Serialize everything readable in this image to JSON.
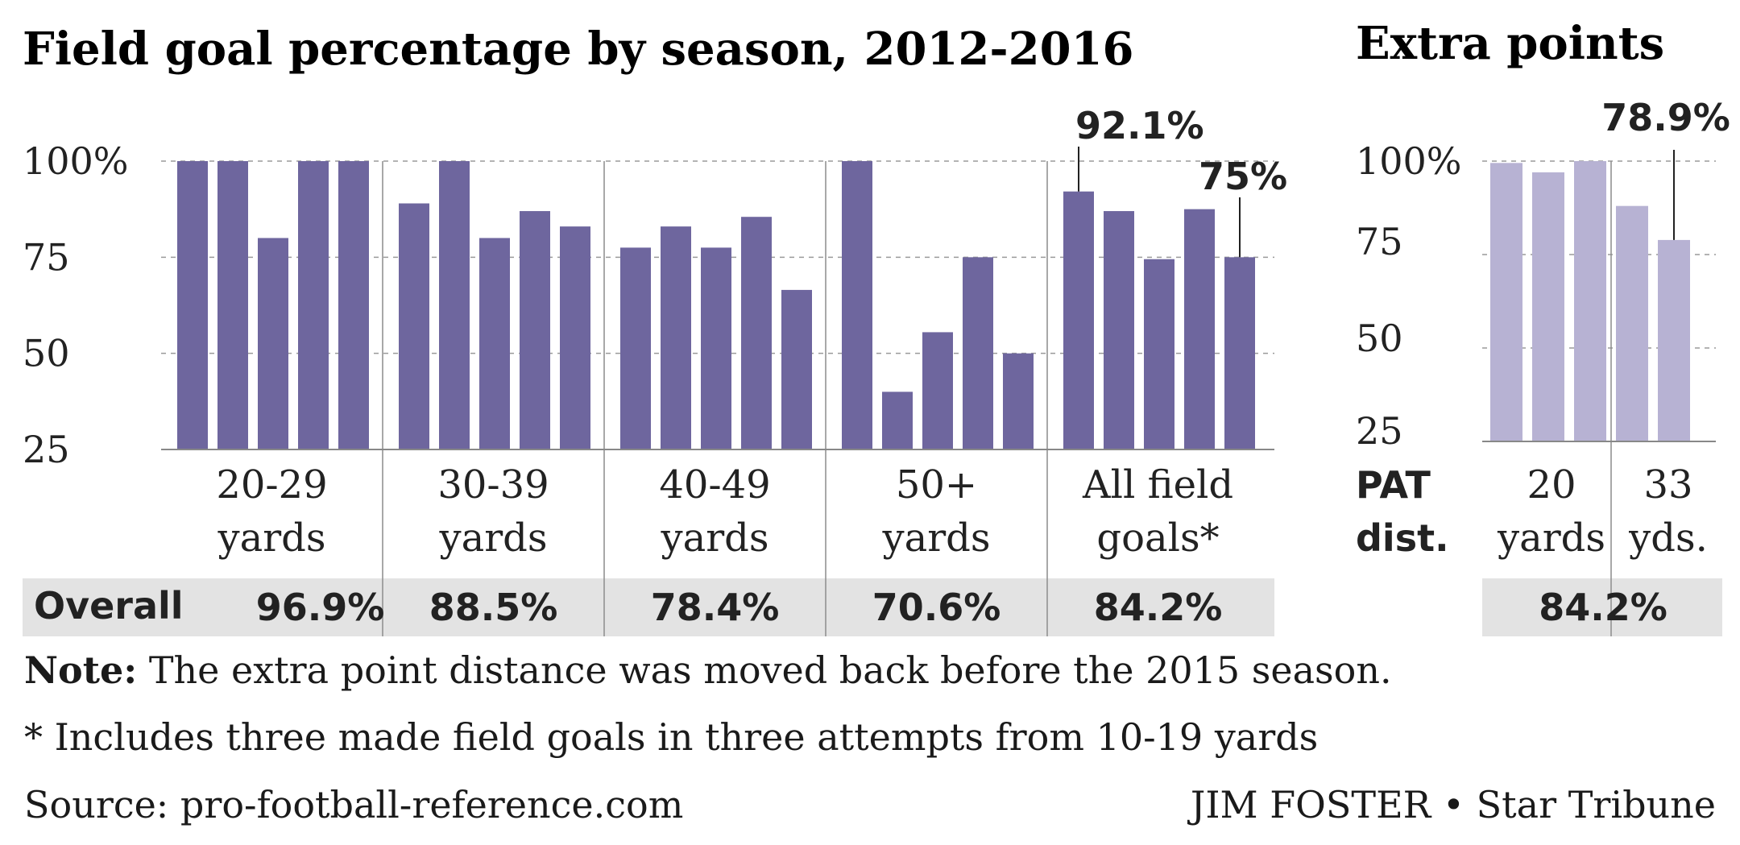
{
  "chart_data": [
    {
      "type": "bar",
      "title": "Field goal percentage by season, 2012-2016",
      "ylim": [
        25,
        100
      ],
      "yticks": [
        "100%",
        "75",
        "50",
        "25"
      ],
      "bar_color": "#6e669e",
      "groups": [
        {
          "label": [
            "20-29",
            "yards"
          ],
          "values": [
            100,
            100,
            80,
            100,
            100
          ],
          "overall": "96.9%"
        },
        {
          "label": [
            "30-39",
            "yards"
          ],
          "values": [
            89,
            100,
            80,
            87,
            83
          ],
          "overall": "88.5%"
        },
        {
          "label": [
            "40-49",
            "yards"
          ],
          "values": [
            77.5,
            83,
            77.5,
            85.5,
            66.5
          ],
          "overall": "78.4%"
        },
        {
          "label": [
            "50+",
            "yards"
          ],
          "values": [
            100,
            40,
            55.5,
            75,
            50
          ],
          "overall": "70.6%"
        },
        {
          "label": [
            "All field",
            "goals*"
          ],
          "values": [
            92.1,
            87,
            74.5,
            87.5,
            75
          ],
          "overall": "84.2%"
        }
      ],
      "callouts": [
        {
          "text": "92.1%",
          "group": 4,
          "bar": 0
        },
        {
          "text": "75%",
          "group": 4,
          "bar": 4
        }
      ],
      "overall_label": "Overall"
    },
    {
      "type": "bar",
      "title": "Extra points",
      "ylim": [
        25,
        100
      ],
      "yticks": [
        "100%",
        "75",
        "50",
        "25"
      ],
      "bar_color": "#b7b2d3",
      "values": [
        99.5,
        97,
        100,
        88,
        78.9
      ],
      "category_label": [
        "PAT",
        "dist."
      ],
      "groups": [
        {
          "label": [
            "20",
            "yards"
          ],
          "bars": 3
        },
        {
          "label": [
            "33",
            "yds."
          ],
          "bars": 2
        }
      ],
      "callouts": [
        {
          "text": "78.9%",
          "bar": 4
        }
      ],
      "overall": "84.2%"
    }
  ],
  "note": {
    "label": "Note:",
    "text": " The extra point distance was moved back before the 2015 season.",
    "footnote": "* Includes three made field goals in three attempts from 10-19 yards",
    "source": "Source: pro-football-reference.com",
    "credit": "JIM FOSTER • Star Tribune"
  }
}
